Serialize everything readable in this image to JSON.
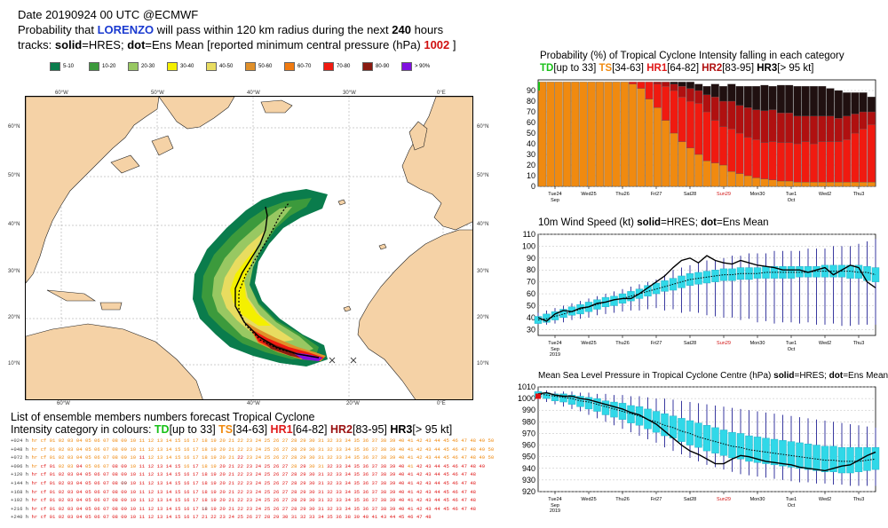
{
  "header": {
    "line1": "Date 20190924 00 UTC    @ECMWF",
    "line2_pre": "Probability that ",
    "storm": "LORENZO",
    "line2_post": " will pass within 120 km radius during the next ",
    "hours": "240",
    "line2_end": " hours",
    "line3_a": "tracks: ",
    "solid": "solid",
    "line3_b": "=HRES; ",
    "dot": "dot",
    "line3_c": "=Ens Mean [reported minimum central pressure (hPa) ",
    "pressure": "1002",
    "line3_d": " ]"
  },
  "prob_legend": [
    {
      "label": "5-10",
      "color": "#0a7c4c"
    },
    {
      "label": "10-20",
      "color": "#3c9a3c"
    },
    {
      "label": "20-30",
      "color": "#98c862"
    },
    {
      "label": "30-40",
      "color": "#f4f000"
    },
    {
      "label": "40-50",
      "color": "#e8dc60"
    },
    {
      "label": "50-60",
      "color": "#e0902a"
    },
    {
      "label": "60-70",
      "color": "#f07a10"
    },
    {
      "label": "70-80",
      "color": "#f01a10"
    },
    {
      "label": "80-90",
      "color": "#8a1a10"
    },
    {
      "label": "> 90%",
      "color": "#8010e0"
    }
  ],
  "map": {
    "lon_top": [
      "60°W",
      "50°W",
      "40°W",
      "30°W",
      "0°E"
    ],
    "lon_bottom": [
      "60°W",
      "40°W",
      "20°W",
      "0°E"
    ],
    "lat_left": [
      "60°N",
      "50°N",
      "40°N",
      "30°N",
      "20°N",
      "10°N"
    ],
    "lat_right": [
      "60°N",
      "50°N",
      "40°N",
      "30°N",
      "20°N",
      "10°N"
    ]
  },
  "ensemble": {
    "title_a": "List of ensemble members numbers forecast Tropical Cyclone",
    "title_b": "Intensity category in colours: ",
    "td": "TD",
    "td_r": "[up to 33]  ",
    "ts": "TS",
    "ts_r": "[34-63]  ",
    "h1": "HR1",
    "h1_r": "[64-82]  ",
    "h2": "HR2",
    "h2_r": "[83-95]  ",
    "h3": "HR3",
    "h3_r": "[> 95 kt]",
    "rows": [
      {
        "lead": "+024 h",
        "cats": "oooooooooooooooooooooooooooooooooooooooooooooooooooo"
      },
      {
        "lead": "+048 h",
        "cats": "oooooooooooooooooooooooooooooooooooooooooooooooooooo"
      },
      {
        "lead": "+072 h",
        "cats": "oooooooooooorooooooooooroooooooooooooooooooooooooooo"
      },
      {
        "lead": "+096 h",
        "cats": "orroorooorrorrrrroroorrrrrrrroroorrrrrrrrrorrrrrrrr"
      },
      {
        "lead": "+120 h",
        "cats": "rrrrrrrrrrrrrrrrrrrrrrrrrrrrrrrrrrrrrrrrrrrrrrrrrr"
      },
      {
        "lead": "+144 h",
        "cats": "rrrrrrrrrrdrrrrrrrrrrrrrrrrrrrrrrrrrrrrrrrrrrrrrrr"
      },
      {
        "lead": "+168 h",
        "cats": "rrrrrrrrrrrrrrrrrrrrrrrrrrrrrrrrrrrrrrrrrrrrrrrrrr"
      },
      {
        "lead": "+192 h",
        "cats": "rrrrrrrrrrrrrrrrrrrrrrrrrrrrrrrrrrrrrrrrrrrrrrrrrr"
      },
      {
        "lead": "+216 h",
        "cats": "rrrrrrrrrrrrrrrrrrrdrrrrrrrrrrrrrrrrrrrrrrrrrrrrrr"
      },
      {
        "lead": "+240 h",
        "cats": "rrrrrrrrrrrrrrrrrrr---rrrrrrrrrrrrrrrr-rrrr-rrrrrr"
      }
    ]
  },
  "chart_data": [
    {
      "type": "bar",
      "title_a": "Probability (%) of Tropical Cyclone Intensity falling in each category",
      "cat_td": "TD",
      "cat_td_r": "[up to 33]  ",
      "cat_ts": "TS",
      "cat_ts_r": "[34-63]  ",
      "cat_h1": "HR1",
      "cat_h1_r": "[64-82]  ",
      "cat_h2": "HR2",
      "cat_h2_r": "[83-95]  ",
      "cat_h3": "HR3",
      "cat_h3_r": "[> 95 kt]",
      "ylim": [
        0,
        100
      ],
      "yticks": [
        0,
        10,
        20,
        30,
        40,
        50,
        60,
        70,
        80,
        90
      ],
      "xticks": [
        "Tue24",
        "Wed25",
        "Thu26",
        "Fri27",
        "Sat28",
        "Sun29",
        "Mon30",
        "Tue1",
        "Wed2",
        "Thu3"
      ],
      "xsub": [
        "Sep\n2019",
        "",
        "",
        "",
        "",
        "",
        "",
        "Oct",
        "",
        ""
      ],
      "colors": {
        "TD": "#18c018",
        "TS": "#f08a10",
        "HR1": "#f01a10",
        "HR2": "#b01010",
        "HR3": "#201010"
      },
      "n_steps": 41,
      "series": [
        {
          "name": "TS",
          "values": [
            98,
            98,
            98,
            98,
            98,
            98,
            98,
            98,
            98,
            98,
            98,
            96,
            92,
            82,
            74,
            62,
            50,
            42,
            36,
            30,
            24,
            22,
            20,
            14,
            12,
            10,
            8,
            7,
            6,
            5,
            5,
            4,
            4,
            4,
            4,
            4,
            4,
            4,
            4,
            4,
            4
          ]
        },
        {
          "name": "HR1",
          "values": [
            0,
            0,
            0,
            0,
            0,
            0,
            0,
            0,
            0,
            0,
            0,
            2,
            6,
            16,
            22,
            32,
            40,
            42,
            44,
            48,
            46,
            40,
            36,
            40,
            38,
            36,
            36,
            34,
            36,
            36,
            36,
            36,
            38,
            36,
            38,
            38,
            38,
            40,
            46,
            50,
            54
          ]
        },
        {
          "name": "HR2",
          "values": [
            0,
            0,
            0,
            0,
            0,
            0,
            0,
            0,
            0,
            0,
            0,
            0,
            0,
            0,
            2,
            4,
            6,
            10,
            12,
            12,
            16,
            22,
            24,
            26,
            26,
            28,
            28,
            30,
            30,
            28,
            28,
            26,
            24,
            26,
            24,
            24,
            22,
            22,
            18,
            16,
            12
          ]
        },
        {
          "name": "HR3",
          "values": [
            0,
            0,
            0,
            0,
            0,
            0,
            0,
            0,
            0,
            0,
            0,
            0,
            0,
            0,
            0,
            0,
            2,
            4,
            6,
            6,
            8,
            12,
            14,
            16,
            18,
            20,
            22,
            24,
            22,
            26,
            26,
            28,
            28,
            28,
            28,
            26,
            26,
            22,
            20,
            18,
            14
          ]
        }
      ]
    },
    {
      "type": "line",
      "title_a": "10m Wind Speed (kt) ",
      "title_b": "solid",
      "title_c": "=HRES; ",
      "title_d": "dot",
      "title_e": "=Ens Mean",
      "ylim": [
        25,
        110
      ],
      "yticks": [
        30,
        40,
        50,
        60,
        70,
        80,
        90,
        100,
        110
      ],
      "xticks": [
        "Tue24",
        "Wed25",
        "Thu26",
        "Fri27",
        "Sat28",
        "Sun29",
        "Mon30",
        "Tue1",
        "Wed2",
        "Thu3"
      ],
      "hres": [
        40,
        37,
        43,
        46,
        45,
        48,
        49,
        52,
        53,
        55,
        56,
        56,
        60,
        65,
        70,
        75,
        82,
        88,
        90,
        86,
        92,
        88,
        86,
        85,
        88,
        86,
        84,
        83,
        82,
        80,
        80,
        80,
        78,
        80,
        82,
        76,
        80,
        84,
        82,
        70,
        65
      ],
      "ens_mean": [
        38,
        39,
        41,
        43,
        45,
        47,
        49,
        51,
        53,
        55,
        56,
        58,
        60,
        62,
        64,
        66,
        68,
        70,
        72,
        73,
        74,
        75,
        76,
        76,
        77,
        77,
        77,
        78,
        78,
        78,
        78,
        78,
        78,
        79,
        79,
        79,
        79,
        79,
        78,
        78,
        76
      ],
      "box_lo": [
        35,
        36,
        38,
        40,
        42,
        43,
        45,
        47,
        49,
        50,
        52,
        54,
        56,
        58,
        60,
        62,
        63,
        65,
        67,
        68,
        69,
        70,
        71,
        71,
        72,
        72,
        73,
        73,
        73,
        73,
        73,
        74,
        74,
        74,
        74,
        74,
        74,
        73,
        73,
        71,
        70
      ],
      "box_hi": [
        41,
        43,
        45,
        47,
        49,
        51,
        53,
        55,
        57,
        58,
        60,
        62,
        64,
        67,
        69,
        71,
        73,
        75,
        77,
        78,
        79,
        80,
        81,
        81,
        82,
        82,
        82,
        83,
        83,
        83,
        83,
        83,
        83,
        83,
        84,
        84,
        84,
        84,
        84,
        83,
        82
      ],
      "wh_lo": [
        34,
        34,
        35,
        36,
        38,
        39,
        40,
        42,
        43,
        44,
        45,
        46,
        46,
        47,
        48,
        46,
        47,
        44,
        45,
        44,
        42,
        41,
        40,
        40,
        38,
        39,
        36,
        37,
        35,
        36,
        36,
        35,
        36,
        34,
        34,
        35,
        33,
        33,
        34,
        34,
        34
      ],
      "wh_hi": [
        44,
        46,
        48,
        50,
        52,
        54,
        56,
        58,
        60,
        62,
        64,
        66,
        68,
        70,
        72,
        76,
        80,
        82,
        84,
        86,
        88,
        88,
        90,
        92,
        92,
        94,
        94,
        94,
        96,
        96,
        96,
        96,
        98,
        98,
        98,
        100,
        100,
        100,
        102,
        104,
        106
      ]
    },
    {
      "type": "line",
      "title_a": "Mean Sea Level Pressure in Tropical Cyclone Centre (hPa) ",
      "title_b": "solid",
      "title_c": "=HRES; ",
      "title_d": "dot",
      "title_e": "=Ens Mean",
      "ylim": [
        920,
        1010
      ],
      "yticks": [
        920,
        930,
        940,
        950,
        960,
        970,
        980,
        990,
        1000,
        1010
      ],
      "xticks": [
        "Tue24",
        "Wed25",
        "Thu26",
        "Fri27",
        "Sat28",
        "Sun29",
        "Mon30",
        "Tue1",
        "Wed2",
        "Thu3"
      ],
      "reported": 1002,
      "hres": [
        1004,
        1005,
        1003,
        1002,
        1002,
        1000,
        999,
        997,
        995,
        993,
        991,
        988,
        986,
        982,
        978,
        972,
        966,
        960,
        955,
        952,
        948,
        944,
        944,
        948,
        951,
        950,
        948,
        946,
        945,
        944,
        943,
        941,
        940,
        939,
        938,
        940,
        942,
        943,
        947,
        951,
        954
      ],
      "ens_mean": [
        1004,
        1003,
        1002,
        1001,
        1000,
        998,
        997,
        995,
        993,
        991,
        989,
        987,
        985,
        982,
        980,
        977,
        975,
        972,
        970,
        967,
        965,
        963,
        961,
        959,
        958,
        956,
        955,
        954,
        953,
        952,
        951,
        950,
        949,
        948,
        947,
        947,
        946,
        946,
        946,
        947,
        948
      ],
      "box_lo": [
        1001,
        1000,
        998,
        997,
        995,
        993,
        991,
        989,
        986,
        984,
        982,
        979,
        977,
        974,
        971,
        968,
        966,
        963,
        960,
        958,
        955,
        953,
        951,
        949,
        948,
        946,
        945,
        944,
        943,
        942,
        941,
        940,
        939,
        938,
        937,
        937,
        936,
        936,
        937,
        938,
        939
      ],
      "box_hi": [
        1006,
        1005,
        1004,
        1004,
        1003,
        1002,
        1001,
        1000,
        998,
        997,
        996,
        994,
        993,
        991,
        989,
        987,
        985,
        983,
        981,
        979,
        977,
        975,
        973,
        971,
        970,
        968,
        967,
        966,
        965,
        964,
        963,
        962,
        961,
        960,
        959,
        959,
        958,
        958,
        958,
        958,
        958
      ],
      "wh_lo": [
        999,
        997,
        995,
        993,
        991,
        989,
        986,
        983,
        980,
        977,
        974,
        971,
        968,
        965,
        962,
        958,
        955,
        952,
        949,
        946,
        943,
        941,
        939,
        937,
        935,
        934,
        933,
        932,
        931,
        930,
        929,
        928,
        928,
        927,
        927,
        926,
        926,
        925,
        925,
        925,
        925
      ],
      "wh_hi": [
        1007,
        1007,
        1006,
        1006,
        1006,
        1005,
        1005,
        1004,
        1004,
        1003,
        1003,
        1002,
        1002,
        1001,
        1000,
        1000,
        999,
        998,
        997,
        996,
        995,
        994,
        993,
        992,
        991,
        990,
        989,
        988,
        987,
        986,
        985,
        984,
        983,
        982,
        981,
        980,
        979,
        978,
        977,
        976,
        975
      ]
    }
  ]
}
